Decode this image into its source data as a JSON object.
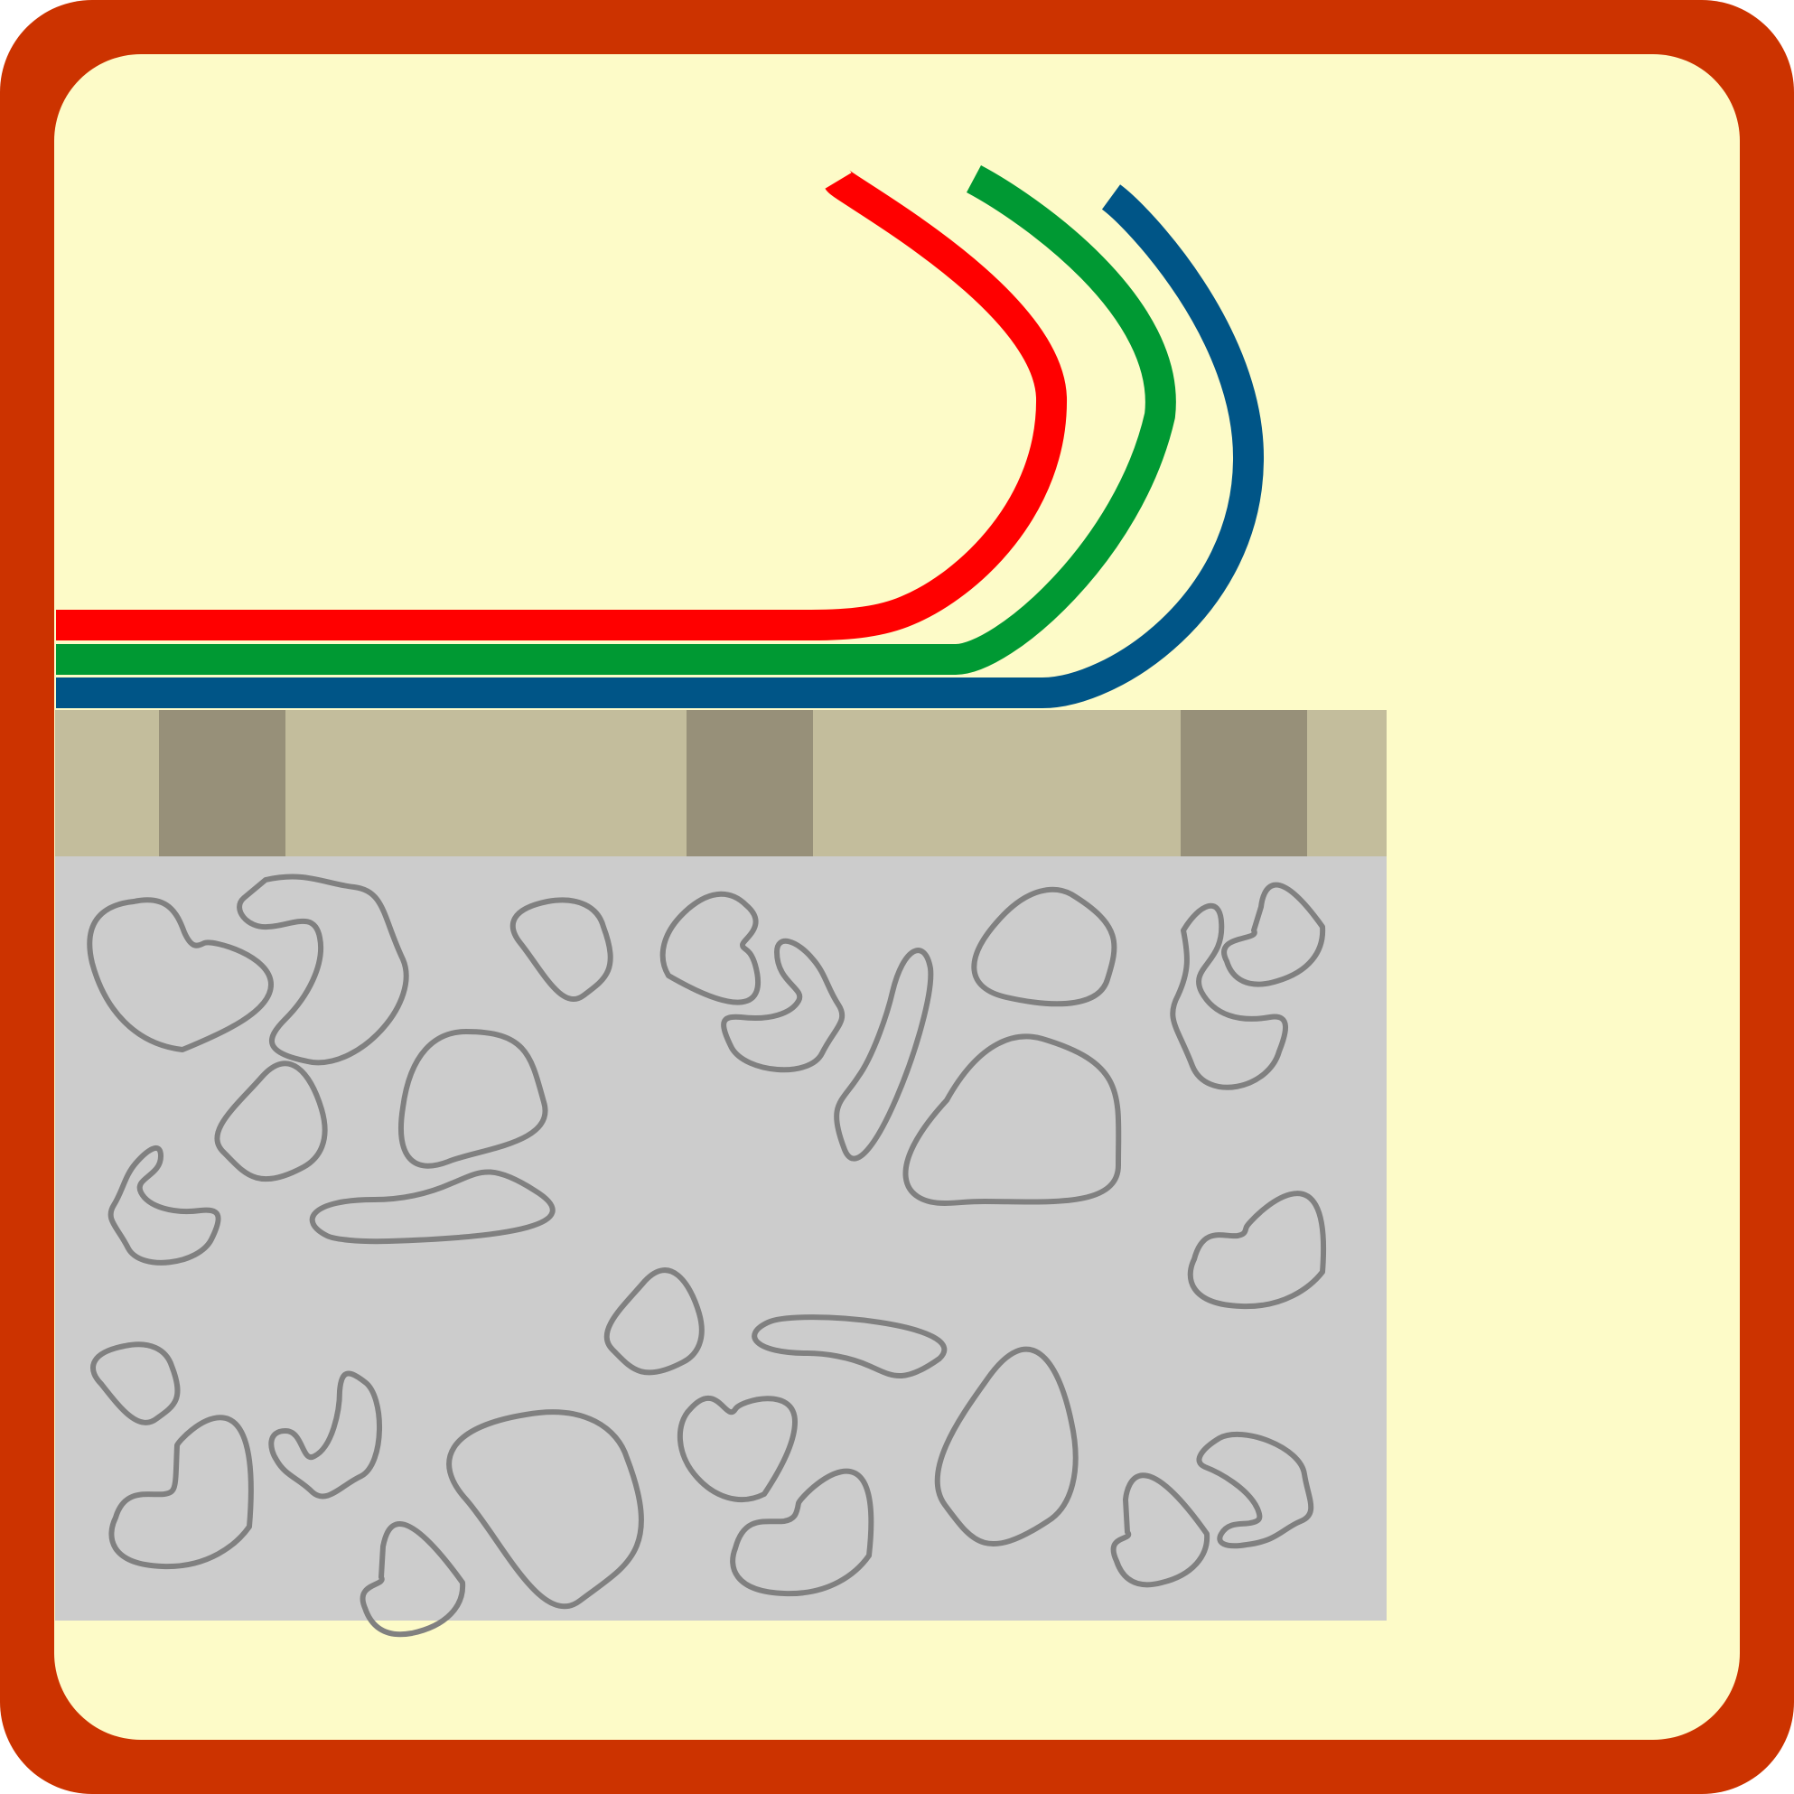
{
  "icon": {
    "frame_color": "#cc3300",
    "background_color": "#fdfbc8",
    "cables": [
      {
        "name": "red-cable",
        "color": "#ff0000"
      },
      {
        "name": "green-cable",
        "color": "#009933"
      },
      {
        "name": "blue-cable",
        "color": "#005587"
      }
    ],
    "sleeper_layer": {
      "ballast_color": "#c3bd9c",
      "sleeper_color": "#979079",
      "sleeper_count": 3
    },
    "gravel_layer": {
      "fill_color": "#cccccc",
      "stone_outline_color": "#808080"
    }
  }
}
